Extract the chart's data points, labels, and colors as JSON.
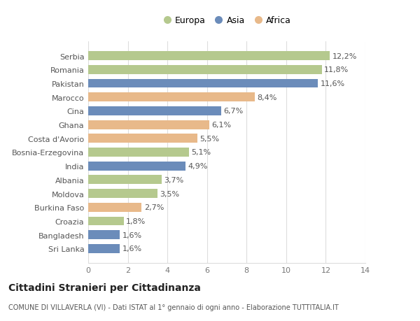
{
  "countries": [
    "Serbia",
    "Romania",
    "Pakistan",
    "Marocco",
    "Cina",
    "Ghana",
    "Costa d'Avorio",
    "Bosnia-Erzegovina",
    "India",
    "Albania",
    "Moldova",
    "Burkina Faso",
    "Croazia",
    "Bangladesh",
    "Sri Lanka"
  ],
  "values": [
    12.2,
    11.8,
    11.6,
    8.4,
    6.7,
    6.1,
    5.5,
    5.1,
    4.9,
    3.7,
    3.5,
    2.7,
    1.8,
    1.6,
    1.6
  ],
  "continents": [
    "Europa",
    "Europa",
    "Asia",
    "Africa",
    "Asia",
    "Africa",
    "Africa",
    "Europa",
    "Asia",
    "Europa",
    "Europa",
    "Africa",
    "Europa",
    "Asia",
    "Asia"
  ],
  "labels": [
    "12,2%",
    "11,8%",
    "11,6%",
    "8,4%",
    "6,7%",
    "6,1%",
    "5,5%",
    "5,1%",
    "4,9%",
    "3,7%",
    "3,5%",
    "2,7%",
    "1,8%",
    "1,6%",
    "1,6%"
  ],
  "colors": {
    "Europa": "#b5c98e",
    "Asia": "#6b8cba",
    "Africa": "#e8b98a"
  },
  "xlim": [
    0,
    14
  ],
  "xticks": [
    0,
    2,
    4,
    6,
    8,
    10,
    12,
    14
  ],
  "title": "Cittadini Stranieri per Cittadinanza",
  "subtitle": "COMUNE DI VILLAVERLA (VI) - Dati ISTAT al 1° gennaio di ogni anno - Elaborazione TUTTITALIA.IT",
  "background_color": "#ffffff",
  "grid_color": "#dddddd",
  "bar_height": 0.65,
  "label_fontsize": 8.0,
  "tick_fontsize": 8.0,
  "title_fontsize": 10,
  "subtitle_fontsize": 7.0
}
